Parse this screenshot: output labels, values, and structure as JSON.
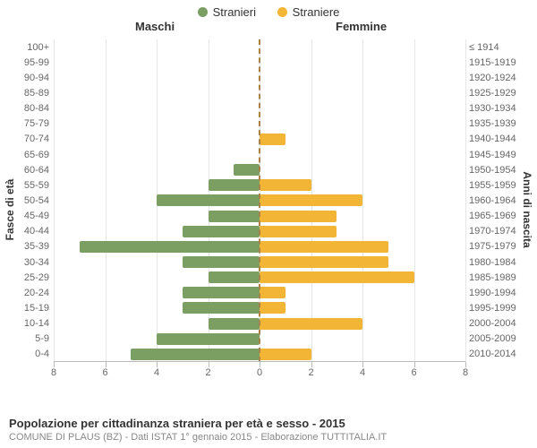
{
  "legend": {
    "male": {
      "label": "Stranieri",
      "color": "#7b9e62"
    },
    "female": {
      "label": "Straniere",
      "color": "#f2b536"
    }
  },
  "column_titles": {
    "left": "Maschi",
    "right": "Femmine"
  },
  "y_axis_left_label": "Fasce di età",
  "y_axis_right_label": "Anni di nascita",
  "chart": {
    "type": "population-pyramid",
    "x_max": 8,
    "x_ticks": [
      8,
      6,
      4,
      2,
      0,
      2,
      4,
      6,
      8
    ],
    "background_color": "#ffffff",
    "grid_color": "#e6e6e6",
    "axis_color": "#bbbbbb",
    "center_line_color": "#a9824a",
    "bar_male_color": "#7b9e62",
    "bar_female_color": "#f2b536",
    "title_fontsize": 13,
    "label_fontsize": 11,
    "rows": [
      {
        "age": "100+",
        "cohort": "≤ 1914",
        "m": 0,
        "f": 0
      },
      {
        "age": "95-99",
        "cohort": "1915-1919",
        "m": 0,
        "f": 0
      },
      {
        "age": "90-94",
        "cohort": "1920-1924",
        "m": 0,
        "f": 0
      },
      {
        "age": "85-89",
        "cohort": "1925-1929",
        "m": 0,
        "f": 0
      },
      {
        "age": "80-84",
        "cohort": "1930-1934",
        "m": 0,
        "f": 0
      },
      {
        "age": "75-79",
        "cohort": "1935-1939",
        "m": 0,
        "f": 0
      },
      {
        "age": "70-74",
        "cohort": "1940-1944",
        "m": 0,
        "f": 1
      },
      {
        "age": "65-69",
        "cohort": "1945-1949",
        "m": 0,
        "f": 0
      },
      {
        "age": "60-64",
        "cohort": "1950-1954",
        "m": 1,
        "f": 0
      },
      {
        "age": "55-59",
        "cohort": "1955-1959",
        "m": 2,
        "f": 2
      },
      {
        "age": "50-54",
        "cohort": "1960-1964",
        "m": 4,
        "f": 4
      },
      {
        "age": "45-49",
        "cohort": "1965-1969",
        "m": 2,
        "f": 3
      },
      {
        "age": "40-44",
        "cohort": "1970-1974",
        "m": 3,
        "f": 3
      },
      {
        "age": "35-39",
        "cohort": "1975-1979",
        "m": 7,
        "f": 5
      },
      {
        "age": "30-34",
        "cohort": "1980-1984",
        "m": 3,
        "f": 5
      },
      {
        "age": "25-29",
        "cohort": "1985-1989",
        "m": 2,
        "f": 6
      },
      {
        "age": "20-24",
        "cohort": "1990-1994",
        "m": 3,
        "f": 1
      },
      {
        "age": "15-19",
        "cohort": "1995-1999",
        "m": 3,
        "f": 1
      },
      {
        "age": "10-14",
        "cohort": "2000-2004",
        "m": 2,
        "f": 4
      },
      {
        "age": "5-9",
        "cohort": "2005-2009",
        "m": 4,
        "f": 0
      },
      {
        "age": "0-4",
        "cohort": "2010-2014",
        "m": 5,
        "f": 2
      }
    ]
  },
  "footer": {
    "title": "Popolazione per cittadinanza straniera per età e sesso - 2015",
    "subtitle": "COMUNE DI PLAUS (BZ) - Dati ISTAT 1° gennaio 2015 - Elaborazione TUTTITALIA.IT"
  }
}
